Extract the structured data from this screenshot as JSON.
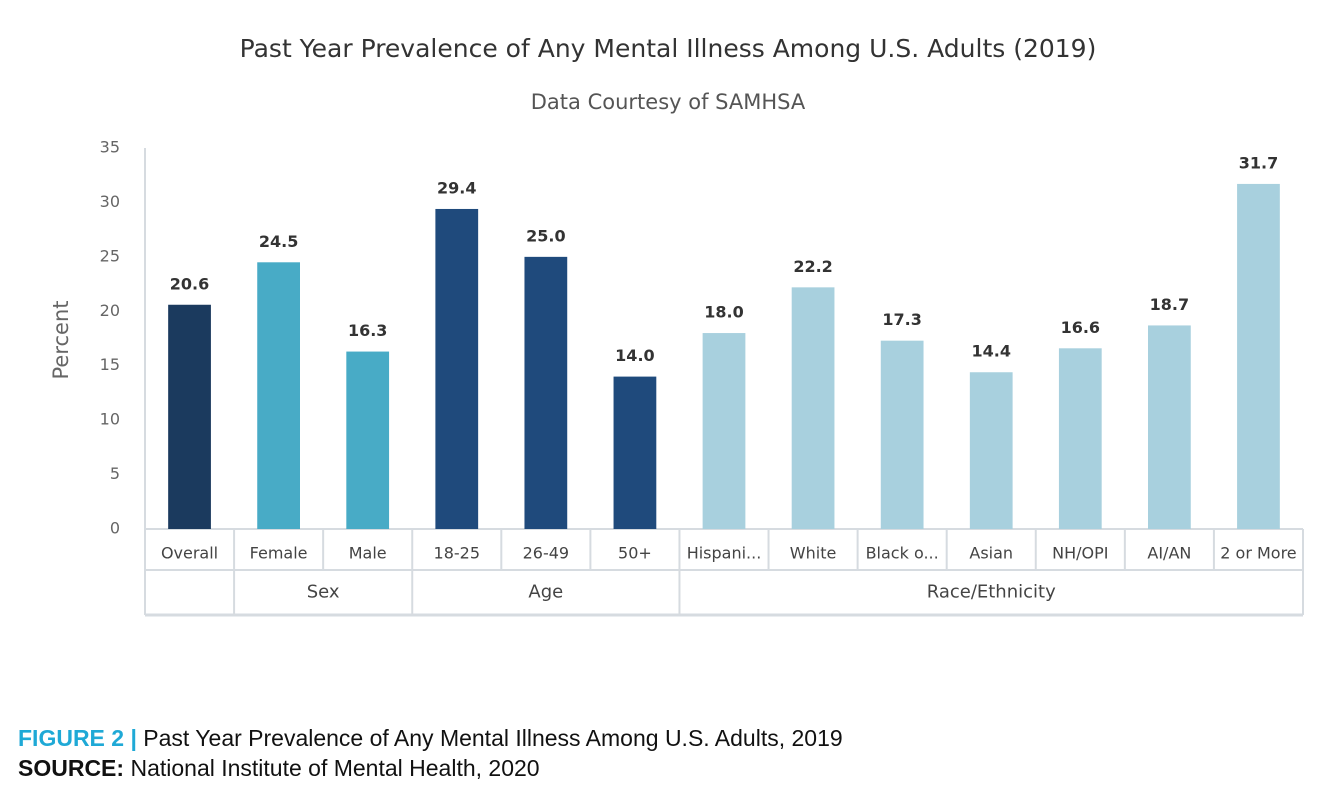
{
  "chart_data": {
    "type": "bar",
    "title": "Past Year Prevalence of Any Mental Illness Among U.S. Adults (2019)",
    "subtitle": "Data Courtesy of SAMHSA",
    "y_label": "Percent",
    "categories": [
      "Overall",
      "Female",
      "Male",
      "18-25",
      "26-49",
      "50+",
      "Hispani...",
      "White",
      "Black o...",
      "Asian",
      "NH/OPI",
      "AI/AN",
      "2 or More"
    ],
    "values": [
      20.6,
      24.5,
      16.3,
      29.4,
      25.0,
      14.0,
      18.0,
      22.2,
      17.3,
      14.4,
      16.6,
      18.7,
      31.7
    ],
    "value_labels": [
      "20.6",
      "24.5",
      "16.3",
      "29.4",
      "25.0",
      "14.0",
      "18.0",
      "22.2",
      "17.3",
      "14.4",
      "16.6",
      "18.7",
      "31.7"
    ],
    "colors": [
      "#1b3a5e",
      "#48abc6",
      "#48abc6",
      "#1f4a7c",
      "#1f4a7c",
      "#1f4a7c",
      "#a8d0de",
      "#a8d0de",
      "#a8d0de",
      "#a8d0de",
      "#a8d0de",
      "#a8d0de",
      "#a8d0de"
    ],
    "groups": [
      {
        "label": null,
        "size": 1
      },
      {
        "label": "Sex",
        "size": 2
      },
      {
        "label": "Age",
        "size": 3
      },
      {
        "label": "Race/Ethnicity",
        "size": 7
      }
    ],
    "ylim": [
      0,
      35
    ],
    "yticks": [
      0,
      5,
      10,
      15,
      20,
      25,
      30,
      35
    ],
    "grid": false
  },
  "caption": {
    "figure_label": "FIGURE 2 |",
    "figure_text": "Past Year Prevalence of Any Mental Illness Among U.S. Adults, 2019",
    "source_label": "SOURCE:",
    "source_text": "National Institute of Mental Health, 2020"
  }
}
